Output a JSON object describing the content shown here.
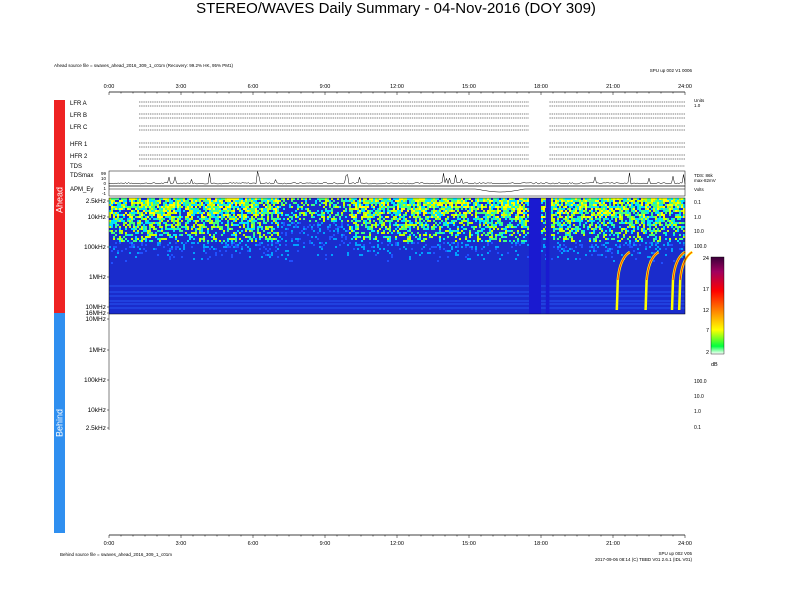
{
  "chart_data": {
    "type": "heatmap",
    "title": "STEREO/WAVES Daily Summary - 04-Nov-2016 (DOY 309)",
    "ahead_source": "Ahead source file = swaves_ahead_2016_309_1_c01m (Recovery: 99.2% HK, 95% PM1)",
    "ahead_version": "SPU up 002 V1 0006",
    "behind_source": "Behind source file = swaves_ahead_2016_309_1_c01m",
    "behind_version_1": "SPU up 002 V05",
    "behind_version_2": "2017-09-06 08:14 (C) TBBD V01 2.6.1 (IDL V01)",
    "panel_labels": {
      "ahead": "Ahead",
      "behind": "Behind"
    },
    "x_ticks": [
      "0:00",
      "3:00",
      "6:00",
      "9:00",
      "12:00",
      "15:00",
      "18:00",
      "21:00",
      "24:00"
    ],
    "x_range_hours": [
      0,
      24
    ],
    "housekeeping_rows": [
      "LFR A",
      "LFR B",
      "LFR C",
      "HFR 1",
      "HFR 2",
      "TDS",
      "TDSmax",
      "APM_Ey"
    ],
    "housekeeping_scale": [
      "Units",
      "1.0",
      "",
      "",
      "",
      "",
      "",
      "",
      ""
    ],
    "tdsmax_ticks": [
      "99",
      "10",
      "0"
    ],
    "tdsmax_right_labels": [
      "TDS: 86k",
      "max-82mV"
    ],
    "apm_ticks": [
      "1",
      "-1"
    ],
    "apm_right_label": "Volts",
    "ahead_freq_ticks": [
      "2.5kHz",
      "10kHz",
      "100kHz",
      "1MHz",
      "10MHz",
      "16MHz"
    ],
    "ahead_freq_ticks_hz": [
      2500,
      10000,
      100000,
      1000000,
      10000000,
      16000000
    ],
    "ahead_freq_range_hz": [
      2500,
      16000000
    ],
    "ahead_right_ticks": [
      "0.1",
      "1.0",
      "10.0",
      "100.0"
    ],
    "behind_freq_ticks": [
      "10MHz",
      "1MHz",
      "100kHz",
      "10kHz",
      "2.5kHz"
    ],
    "behind_right_ticks": [
      "100.0",
      "10.0",
      "1.0",
      "0.1"
    ],
    "colorbar": {
      "label": "dB",
      "ticks": [
        "2",
        "7",
        "12",
        "17",
        "24"
      ],
      "range": [
        2,
        24
      ]
    },
    "data_gaps_hours": [
      [
        17.5,
        18.0
      ],
      [
        18.2,
        18.35
      ]
    ],
    "bursts_hours": [
      21.2,
      22.4,
      23.5,
      23.8
    ],
    "behind_data": "none"
  }
}
